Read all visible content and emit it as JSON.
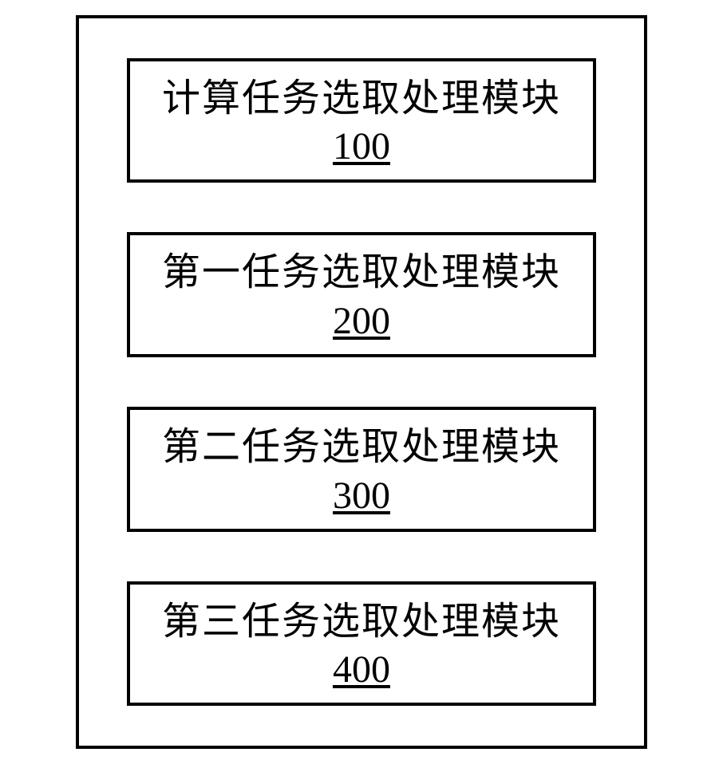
{
  "diagram": {
    "type": "block-diagram",
    "background_color": "#ffffff",
    "border_color": "#000000",
    "border_width": 4,
    "text_color": "#000000",
    "font_family": "SimSun",
    "title_fontsize": 48,
    "number_fontsize": 48,
    "outer_padding_vertical": 50,
    "outer_padding_horizontal": 60,
    "box_gap": 62,
    "box_padding_vertical": 18,
    "box_padding_horizontal": 40,
    "modules": [
      {
        "title": "计算任务选取处理模块",
        "number": "100"
      },
      {
        "title": "第一任务选取处理模块",
        "number": "200"
      },
      {
        "title": "第二任务选取处理模块",
        "number": "300"
      },
      {
        "title": "第三任务选取处理模块",
        "number": "400"
      }
    ]
  }
}
